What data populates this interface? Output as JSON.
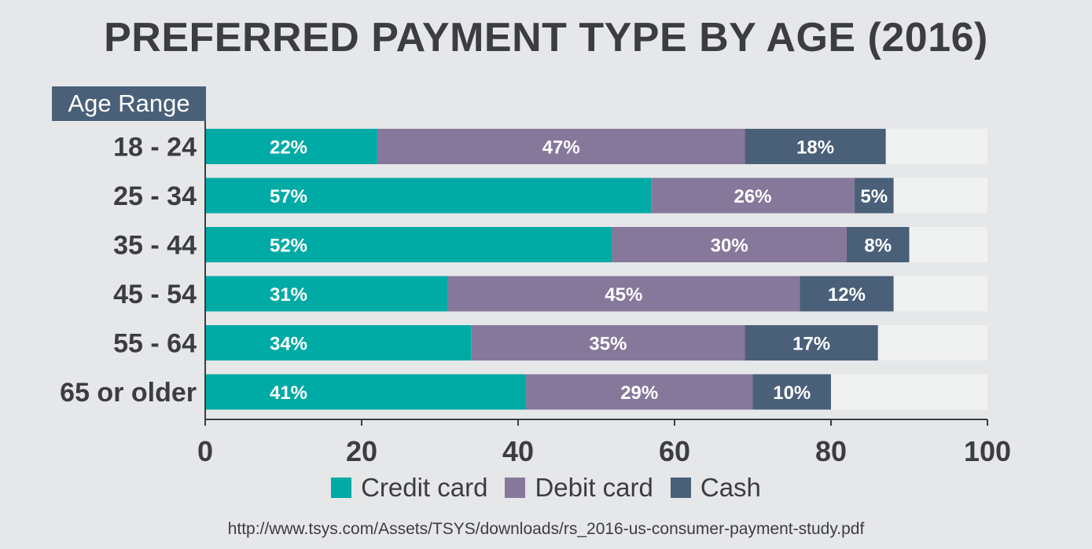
{
  "chart_data": {
    "type": "bar",
    "orientation": "horizontal",
    "stacked": true,
    "title": "PREFERRED PAYMENT TYPE BY AGE (2016)",
    "category_header": "Age Range",
    "categories": [
      "18 - 24",
      "25 - 34",
      "35 - 44",
      "45 - 54",
      "55 - 64",
      "65 or older"
    ],
    "series": [
      {
        "name": "Credit card",
        "color": "#00aaa5",
        "values": [
          22,
          57,
          52,
          31,
          34,
          41
        ],
        "labels": [
          "22%",
          "57%",
          "52%",
          "31%",
          "34%",
          "41%"
        ]
      },
      {
        "name": "Debit card",
        "color": "#86789b",
        "values": [
          47,
          26,
          30,
          45,
          35,
          29
        ],
        "labels": [
          "47%",
          "26%",
          "30%",
          "45%",
          "35%",
          "29%"
        ]
      },
      {
        "name": "Cash",
        "color": "#4a6079",
        "values": [
          18,
          5,
          8,
          12,
          17,
          10
        ],
        "labels": [
          "18%",
          "5%",
          "8%",
          "12%",
          "17%",
          "10%"
        ]
      }
    ],
    "xlim": [
      0,
      100
    ],
    "xticks": [
      "0",
      "20",
      "40",
      "60",
      "80",
      "100"
    ],
    "track_color": "#f0f1f1",
    "legend_position": "bottom"
  },
  "source": "http://www.tsys.com/Assets/TSYS/downloads/rs_2016-us-consumer-payment-study.pdf"
}
